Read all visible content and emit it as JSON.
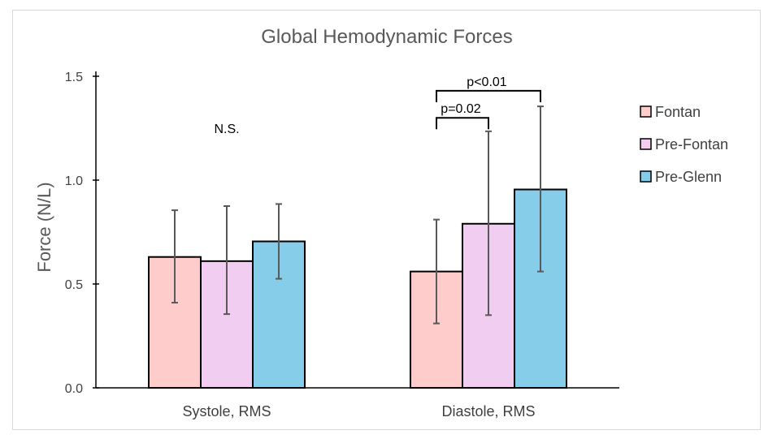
{
  "chart_data": {
    "type": "bar",
    "title": "Global Hemodynamic Forces",
    "xlabel": "",
    "ylabel": "Force (N/L)",
    "ylim": [
      0,
      1.5
    ],
    "yticks": [
      "0.0",
      "0.5",
      "1.0",
      "1.5"
    ],
    "categories": [
      "Systole, RMS",
      "Diastole, RMS"
    ],
    "series": [
      {
        "name": "Fontan",
        "color": "#ffcccc",
        "values": [
          0.63,
          0.56
        ],
        "err_low": [
          0.41,
          0.31
        ],
        "err_high": [
          0.855,
          0.81
        ]
      },
      {
        "name": "Pre-Fontan",
        "color": "#f1cdf1",
        "values": [
          0.61,
          0.79
        ],
        "err_low": [
          0.355,
          0.35
        ],
        "err_high": [
          0.875,
          1.235
        ]
      },
      {
        "name": "Pre-Glenn",
        "color": "#85cde9",
        "values": [
          0.705,
          0.955
        ],
        "err_low": [
          0.525,
          0.56
        ],
        "err_high": [
          0.885,
          1.355
        ]
      }
    ],
    "legend_position": "right",
    "grid": false,
    "annotations": [
      {
        "text": "N.S.",
        "category": 0,
        "series_from": 1,
        "series_to": 1,
        "y": 1.25,
        "bracket": false
      },
      {
        "text": "p=0.02",
        "category": 1,
        "series_from": 0,
        "series_to": 1,
        "y": 1.3,
        "bracket": true
      },
      {
        "text": "p<0.01",
        "category": 1,
        "series_from": 0,
        "series_to": 2,
        "y": 1.43,
        "bracket": true
      }
    ]
  }
}
